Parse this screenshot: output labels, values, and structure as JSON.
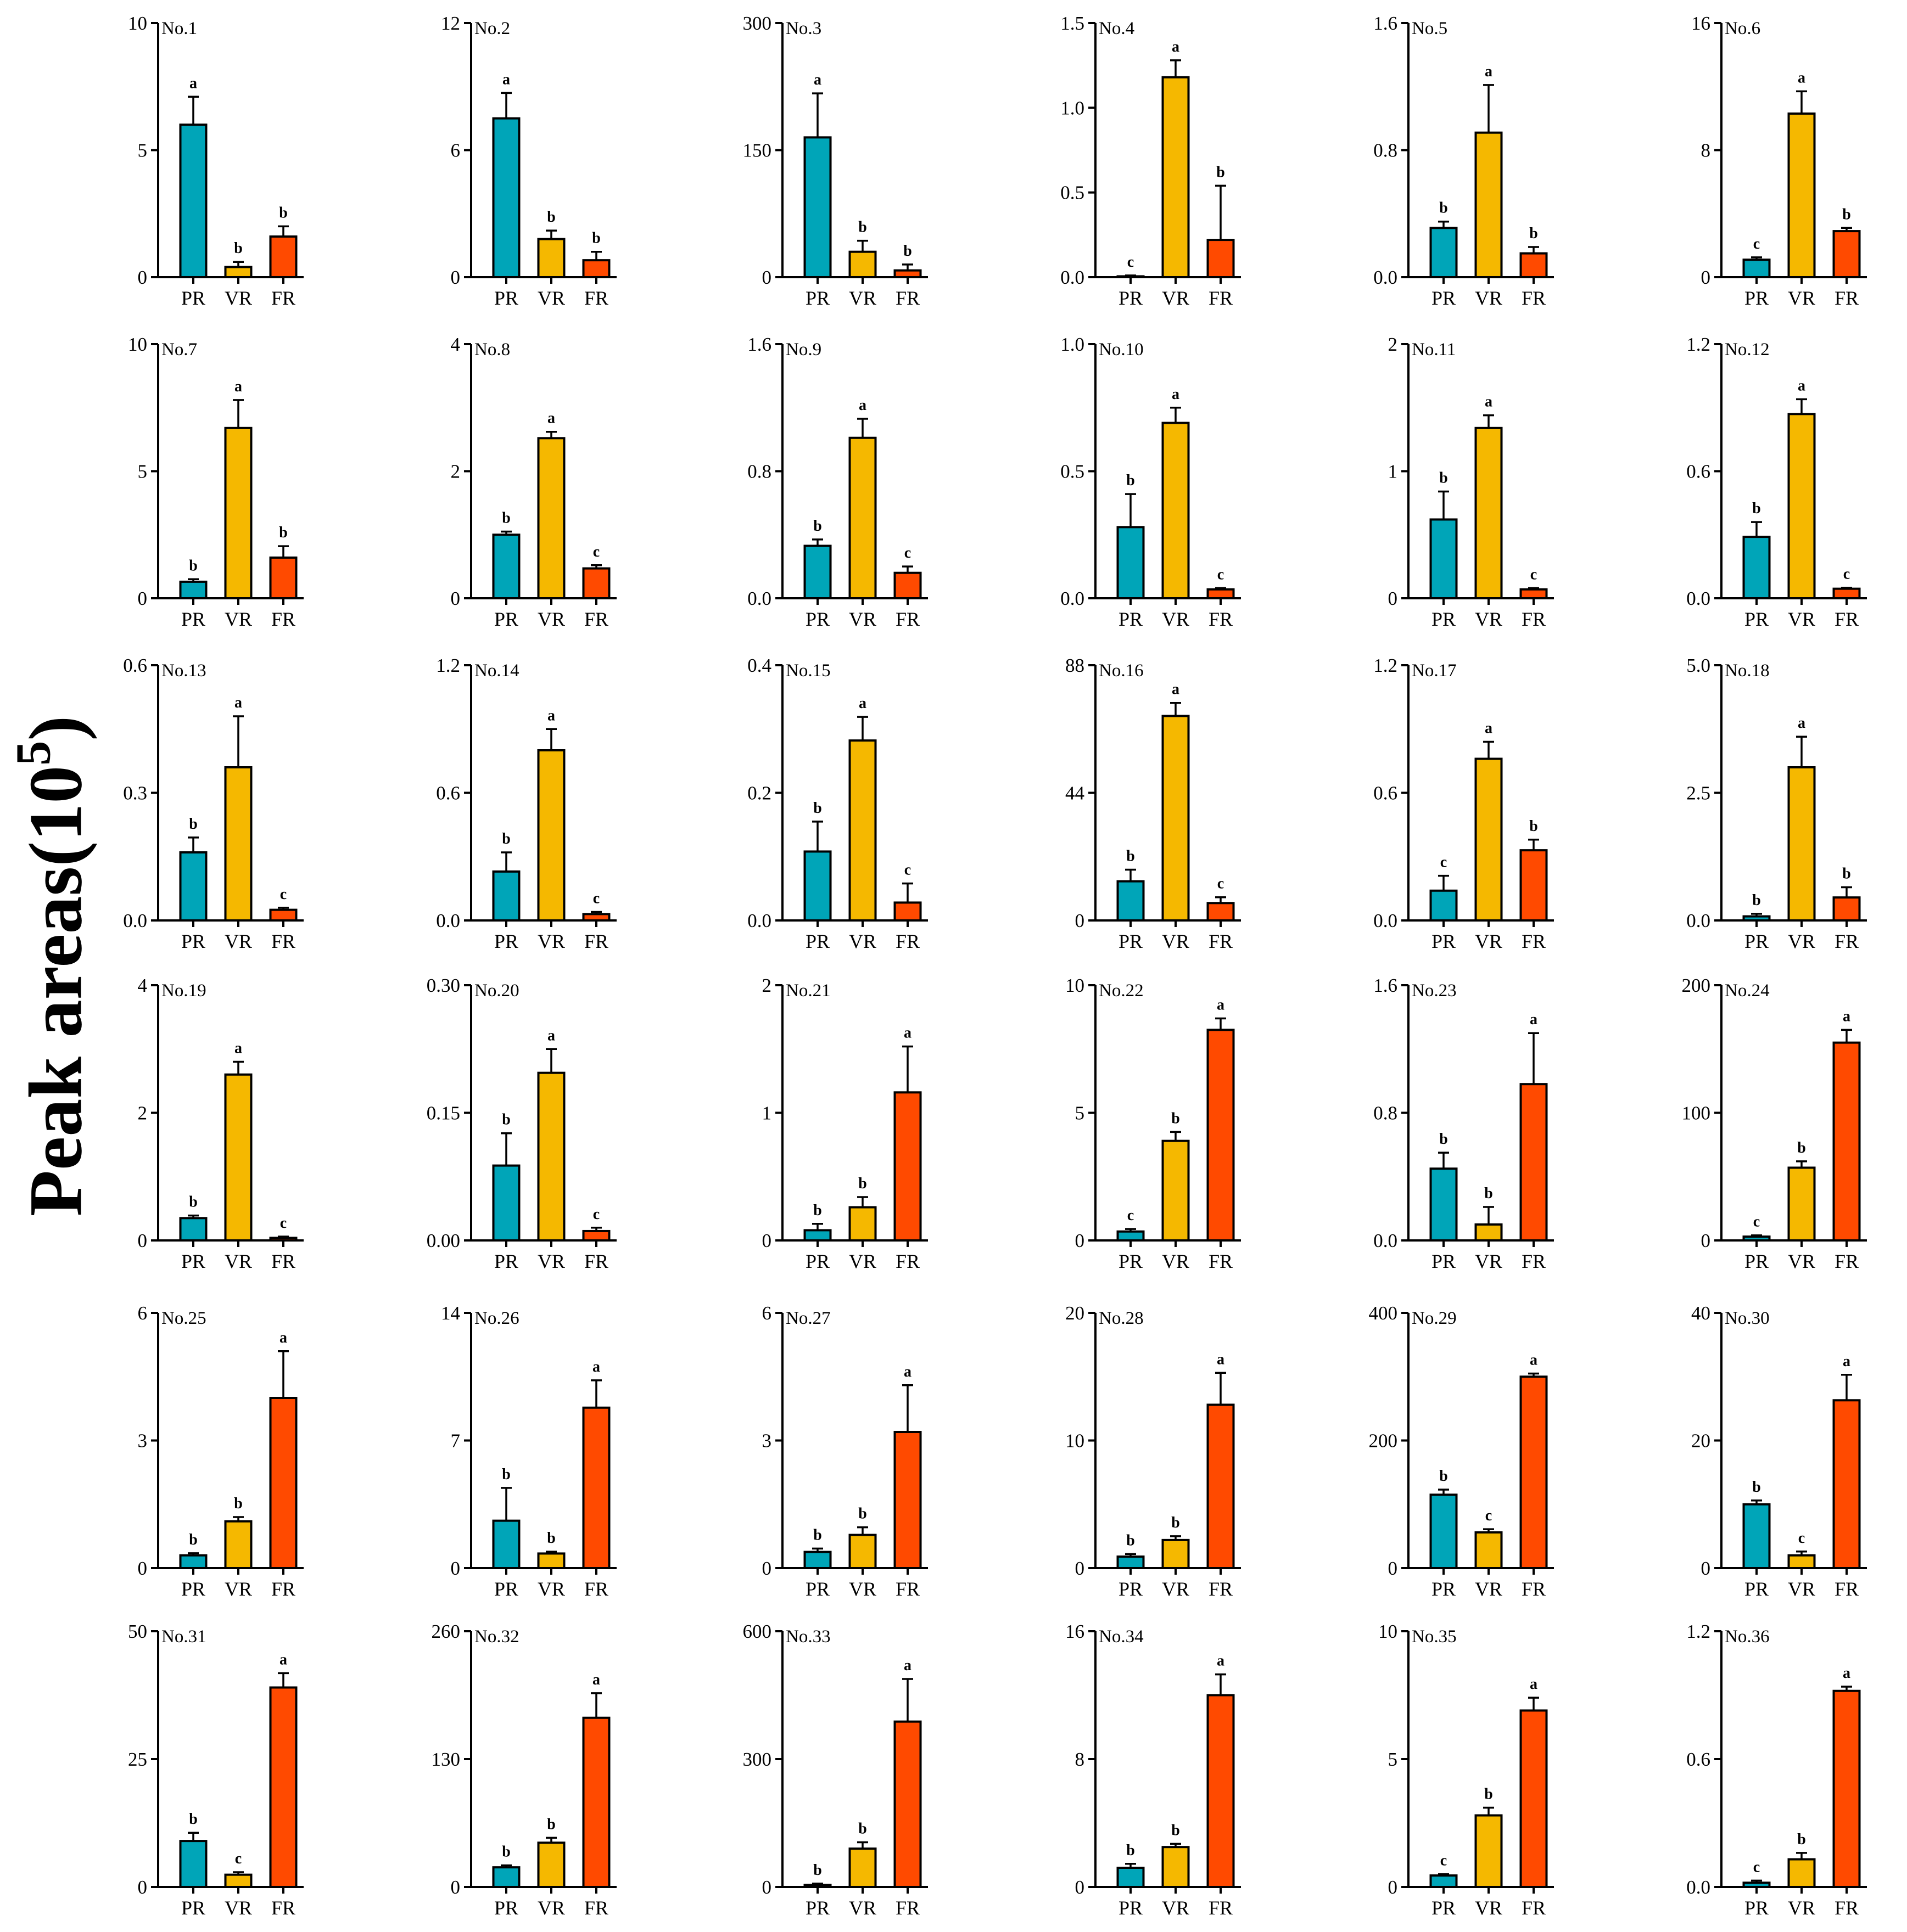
{
  "figure": {
    "y_label_main": "Peak areas(10",
    "y_label_exp": "5",
    "y_label_close": ")"
  },
  "colors": {
    "PR": "#00A5B8",
    "VR": "#F5B800",
    "FR": "#FF4A00",
    "axis": "#000000"
  },
  "chart_data": [
    {
      "type": "bar",
      "title": "No.1",
      "categories": [
        "PR",
        "VR",
        "FR"
      ],
      "values": [
        6.0,
        0.4,
        1.6
      ],
      "errors": [
        1.1,
        0.2,
        0.4
      ],
      "letters": [
        "a",
        "b",
        "b"
      ],
      "ylim": [
        0,
        10
      ],
      "ticks": [
        "0",
        "5",
        "10"
      ]
    },
    {
      "type": "bar",
      "title": "No.2",
      "categories": [
        "PR",
        "VR",
        "FR"
      ],
      "values": [
        7.5,
        1.8,
        0.8
      ],
      "errors": [
        1.2,
        0.4,
        0.4
      ],
      "letters": [
        "a",
        "b",
        "b"
      ],
      "ylim": [
        0,
        12
      ],
      "ticks": [
        "0",
        "6",
        "12"
      ]
    },
    {
      "type": "bar",
      "title": "No.3",
      "categories": [
        "PR",
        "VR",
        "FR"
      ],
      "values": [
        165,
        30,
        8
      ],
      "errors": [
        52,
        13,
        7
      ],
      "letters": [
        "a",
        "b",
        "b"
      ],
      "ylim": [
        0,
        300
      ],
      "ticks": [
        "0",
        "150",
        "300"
      ]
    },
    {
      "type": "bar",
      "title": "No.4",
      "categories": [
        "PR",
        "VR",
        "FR"
      ],
      "values": [
        0.005,
        1.18,
        0.22
      ],
      "errors": [
        0.005,
        0.1,
        0.32
      ],
      "letters": [
        "c",
        "a",
        "b"
      ],
      "ylim": [
        0,
        1.5
      ],
      "ticks": [
        "0.0",
        "0.5",
        "1.0",
        "1.5"
      ]
    },
    {
      "type": "bar",
      "title": "No.5",
      "categories": [
        "PR",
        "VR",
        "FR"
      ],
      "values": [
        0.31,
        0.91,
        0.15
      ],
      "errors": [
        0.04,
        0.3,
        0.04
      ],
      "letters": [
        "b",
        "a",
        "b"
      ],
      "ylim": [
        0,
        1.6
      ],
      "ticks": [
        "0.0",
        "0.8",
        "1.6"
      ]
    },
    {
      "type": "bar",
      "title": "No.6",
      "categories": [
        "PR",
        "VR",
        "FR"
      ],
      "values": [
        1.1,
        10.3,
        2.9
      ],
      "errors": [
        0.15,
        1.4,
        0.2
      ],
      "letters": [
        "c",
        "a",
        "b"
      ],
      "ylim": [
        0,
        16
      ],
      "ticks": [
        "0",
        "8",
        "16"
      ]
    },
    {
      "type": "bar",
      "title": "No.7",
      "categories": [
        "PR",
        "VR",
        "FR"
      ],
      "values": [
        0.65,
        6.7,
        1.6
      ],
      "errors": [
        0.1,
        1.1,
        0.45
      ],
      "letters": [
        "b",
        "a",
        "b"
      ],
      "ylim": [
        0,
        10
      ],
      "ticks": [
        "0",
        "5",
        "10"
      ]
    },
    {
      "type": "bar",
      "title": "No.8",
      "categories": [
        "PR",
        "VR",
        "FR"
      ],
      "values": [
        1.0,
        2.52,
        0.47
      ],
      "errors": [
        0.05,
        0.1,
        0.05
      ],
      "letters": [
        "b",
        "a",
        "c"
      ],
      "ylim": [
        0,
        4
      ],
      "ticks": [
        "0",
        "2",
        "4"
      ]
    },
    {
      "type": "bar",
      "title": "No.9",
      "categories": [
        "PR",
        "VR",
        "FR"
      ],
      "values": [
        0.33,
        1.01,
        0.16
      ],
      "errors": [
        0.04,
        0.12,
        0.04
      ],
      "letters": [
        "b",
        "a",
        "c"
      ],
      "ylim": [
        0,
        1.6
      ],
      "ticks": [
        "0.0",
        "0.8",
        "1.6"
      ]
    },
    {
      "type": "bar",
      "title": "No.10",
      "categories": [
        "PR",
        "VR",
        "FR"
      ],
      "values": [
        0.28,
        0.69,
        0.035
      ],
      "errors": [
        0.13,
        0.06,
        0.005
      ],
      "letters": [
        "b",
        "a",
        "c"
      ],
      "ylim": [
        0,
        1.0
      ],
      "ticks": [
        "0.0",
        "0.5",
        "1.0"
      ]
    },
    {
      "type": "bar",
      "title": "No.11",
      "categories": [
        "PR",
        "VR",
        "FR"
      ],
      "values": [
        0.62,
        1.34,
        0.07
      ],
      "errors": [
        0.22,
        0.1,
        0.01
      ],
      "letters": [
        "b",
        "a",
        "c"
      ],
      "ylim": [
        0,
        2
      ],
      "ticks": [
        "0",
        "1",
        "2"
      ]
    },
    {
      "type": "bar",
      "title": "No.12",
      "categories": [
        "PR",
        "VR",
        "FR"
      ],
      "values": [
        0.29,
        0.87,
        0.045
      ],
      "errors": [
        0.07,
        0.07,
        0.005
      ],
      "letters": [
        "b",
        "a",
        "c"
      ],
      "ylim": [
        0,
        1.2
      ],
      "ticks": [
        "0.0",
        "0.6",
        "1.2"
      ]
    },
    {
      "type": "bar",
      "title": "No.13",
      "categories": [
        "PR",
        "VR",
        "FR"
      ],
      "values": [
        0.16,
        0.36,
        0.025
      ],
      "errors": [
        0.035,
        0.12,
        0.005
      ],
      "letters": [
        "b",
        "a",
        "c"
      ],
      "ylim": [
        0,
        0.6
      ],
      "ticks": [
        "0.0",
        "0.3",
        "0.6"
      ]
    },
    {
      "type": "bar",
      "title": "No.14",
      "categories": [
        "PR",
        "VR",
        "FR"
      ],
      "values": [
        0.23,
        0.8,
        0.03
      ],
      "errors": [
        0.09,
        0.1,
        0.01
      ],
      "letters": [
        "b",
        "a",
        "c"
      ],
      "ylim": [
        0,
        1.2
      ],
      "ticks": [
        "0.0",
        "0.6",
        "1.2"
      ]
    },
    {
      "type": "bar",
      "title": "No.15",
      "categories": [
        "PR",
        "VR",
        "FR"
      ],
      "values": [
        0.108,
        0.282,
        0.028
      ],
      "errors": [
        0.047,
        0.037,
        0.03
      ],
      "letters": [
        "b",
        "a",
        "c"
      ],
      "ylim": [
        0,
        0.4
      ],
      "ticks": [
        "0.0",
        "0.2",
        "0.4"
      ]
    },
    {
      "type": "bar",
      "title": "No.16",
      "categories": [
        "PR",
        "VR",
        "FR"
      ],
      "values": [
        13.5,
        70.5,
        6.0
      ],
      "errors": [
        4,
        4.5,
        2
      ],
      "letters": [
        "b",
        "a",
        "c"
      ],
      "ylim": [
        0,
        88
      ],
      "ticks": [
        "0",
        "44",
        "88"
      ]
    },
    {
      "type": "bar",
      "title": "No.17",
      "categories": [
        "PR",
        "VR",
        "FR"
      ],
      "values": [
        0.14,
        0.76,
        0.33
      ],
      "errors": [
        0.07,
        0.08,
        0.05
      ],
      "letters": [
        "c",
        "a",
        "b"
      ],
      "ylim": [
        0,
        1.2
      ],
      "ticks": [
        "0.0",
        "0.6",
        "1.2"
      ]
    },
    {
      "type": "bar",
      "title": "No.18",
      "categories": [
        "PR",
        "VR",
        "FR"
      ],
      "values": [
        0.08,
        3.0,
        0.45
      ],
      "errors": [
        0.05,
        0.6,
        0.2
      ],
      "letters": [
        "b",
        "a",
        "b"
      ],
      "ylim": [
        0,
        5.0
      ],
      "ticks": [
        "0.0",
        "2.5",
        "5.0"
      ]
    },
    {
      "type": "bar",
      "title": "No.19",
      "categories": [
        "PR",
        "VR",
        "FR"
      ],
      "values": [
        0.35,
        2.6,
        0.04
      ],
      "errors": [
        0.04,
        0.2,
        0.02
      ],
      "letters": [
        "b",
        "a",
        "c"
      ],
      "ylim": [
        0,
        4
      ],
      "ticks": [
        "0",
        "2",
        "4"
      ]
    },
    {
      "type": "bar",
      "title": "No.20",
      "categories": [
        "PR",
        "VR",
        "FR"
      ],
      "values": [
        0.088,
        0.197,
        0.011
      ],
      "errors": [
        0.038,
        0.028,
        0.004
      ],
      "letters": [
        "b",
        "a",
        "c"
      ],
      "ylim": [
        0,
        0.3
      ],
      "ticks": [
        "0.00",
        "0.15",
        "0.30"
      ]
    },
    {
      "type": "bar",
      "title": "No.21",
      "categories": [
        "PR",
        "VR",
        "FR"
      ],
      "values": [
        0.08,
        0.26,
        1.16
      ],
      "errors": [
        0.05,
        0.08,
        0.36
      ],
      "letters": [
        "b",
        "b",
        "a"
      ],
      "ylim": [
        0,
        2
      ],
      "ticks": [
        "0",
        "1",
        "2"
      ]
    },
    {
      "type": "bar",
      "title": "No.22",
      "categories": [
        "PR",
        "VR",
        "FR"
      ],
      "values": [
        0.35,
        3.9,
        8.25
      ],
      "errors": [
        0.1,
        0.35,
        0.45
      ],
      "letters": [
        "c",
        "b",
        "a"
      ],
      "ylim": [
        0,
        10
      ],
      "ticks": [
        "0",
        "5",
        "10"
      ]
    },
    {
      "type": "bar",
      "title": "No.23",
      "categories": [
        "PR",
        "VR",
        "FR"
      ],
      "values": [
        0.45,
        0.1,
        0.98
      ],
      "errors": [
        0.1,
        0.11,
        0.32
      ],
      "letters": [
        "b",
        "b",
        "a"
      ],
      "ylim": [
        0,
        1.6
      ],
      "ticks": [
        "0.0",
        "0.8",
        "1.6"
      ]
    },
    {
      "type": "bar",
      "title": "No.24",
      "categories": [
        "PR",
        "VR",
        "FR"
      ],
      "values": [
        3,
        57,
        155
      ],
      "errors": [
        1,
        5,
        10
      ],
      "letters": [
        "c",
        "b",
        "a"
      ],
      "ylim": [
        0,
        200
      ],
      "ticks": [
        "0",
        "100",
        "200"
      ]
    },
    {
      "type": "bar",
      "title": "No.25",
      "categories": [
        "PR",
        "VR",
        "FR"
      ],
      "values": [
        0.3,
        1.1,
        4.0
      ],
      "errors": [
        0.05,
        0.1,
        1.1
      ],
      "letters": [
        "b",
        "b",
        "a"
      ],
      "ylim": [
        0,
        6
      ],
      "ticks": [
        "0",
        "3",
        "6"
      ]
    },
    {
      "type": "bar",
      "title": "No.26",
      "categories": [
        "PR",
        "VR",
        "FR"
      ],
      "values": [
        2.6,
        0.8,
        8.8
      ],
      "errors": [
        1.8,
        0.1,
        1.5
      ],
      "letters": [
        "b",
        "b",
        "a"
      ],
      "ylim": [
        0,
        14
      ],
      "ticks": [
        "0",
        "7",
        "14"
      ]
    },
    {
      "type": "bar",
      "title": "No.27",
      "categories": [
        "PR",
        "VR",
        "FR"
      ],
      "values": [
        0.38,
        0.78,
        3.2
      ],
      "errors": [
        0.08,
        0.18,
        1.1
      ],
      "letters": [
        "b",
        "b",
        "a"
      ],
      "ylim": [
        0,
        6
      ],
      "ticks": [
        "0",
        "3",
        "6"
      ]
    },
    {
      "type": "bar",
      "title": "No.28",
      "categories": [
        "PR",
        "VR",
        "FR"
      ],
      "values": [
        0.9,
        2.2,
        12.8
      ],
      "errors": [
        0.2,
        0.3,
        2.5
      ],
      "letters": [
        "b",
        "b",
        "a"
      ],
      "ylim": [
        0,
        20
      ],
      "ticks": [
        "0",
        "10",
        "20"
      ]
    },
    {
      "type": "bar",
      "title": "No.29",
      "categories": [
        "PR",
        "VR",
        "FR"
      ],
      "values": [
        115,
        56,
        300
      ],
      "errors": [
        8,
        5,
        5
      ],
      "letters": [
        "b",
        "c",
        "a"
      ],
      "ylim": [
        0,
        400
      ],
      "ticks": [
        "0",
        "200",
        "400"
      ]
    },
    {
      "type": "bar",
      "title": "No.30",
      "categories": [
        "PR",
        "VR",
        "FR"
      ],
      "values": [
        10,
        2,
        26.3
      ],
      "errors": [
        0.6,
        0.6,
        4
      ],
      "letters": [
        "b",
        "c",
        "a"
      ],
      "ylim": [
        0,
        40
      ],
      "ticks": [
        "0",
        "20",
        "40"
      ]
    },
    {
      "type": "bar",
      "title": "No.31",
      "categories": [
        "PR",
        "VR",
        "FR"
      ],
      "values": [
        9,
        2.4,
        39
      ],
      "errors": [
        1.6,
        0.5,
        2.8
      ],
      "letters": [
        "b",
        "c",
        "a"
      ],
      "ylim": [
        0,
        50
      ],
      "ticks": [
        "0",
        "25",
        "50"
      ]
    },
    {
      "type": "bar",
      "title": "No.32",
      "categories": [
        "PR",
        "VR",
        "FR"
      ],
      "values": [
        20,
        45,
        172
      ],
      "errors": [
        2,
        5,
        25
      ],
      "letters": [
        "b",
        "b",
        "a"
      ],
      "ylim": [
        0,
        260
      ],
      "ticks": [
        "0",
        "130",
        "260"
      ]
    },
    {
      "type": "bar",
      "title": "No.33",
      "categories": [
        "PR",
        "VR",
        "FR"
      ],
      "values": [
        5,
        90,
        388
      ],
      "errors": [
        3,
        15,
        100
      ],
      "letters": [
        "b",
        "b",
        "a"
      ],
      "ylim": [
        0,
        600
      ],
      "ticks": [
        "0",
        "300",
        "600"
      ]
    },
    {
      "type": "bar",
      "title": "No.34",
      "categories": [
        "PR",
        "VR",
        "FR"
      ],
      "values": [
        1.2,
        2.5,
        12
      ],
      "errors": [
        0.25,
        0.2,
        1.3
      ],
      "letters": [
        "b",
        "b",
        "a"
      ],
      "ylim": [
        0,
        16
      ],
      "ticks": [
        "0",
        "8",
        "16"
      ]
    },
    {
      "type": "bar",
      "title": "No.35",
      "categories": [
        "PR",
        "VR",
        "FR"
      ],
      "values": [
        0.45,
        2.8,
        6.9
      ],
      "errors": [
        0.05,
        0.3,
        0.5
      ],
      "letters": [
        "c",
        "b",
        "a"
      ],
      "ylim": [
        0,
        10
      ],
      "ticks": [
        "0",
        "5",
        "10"
      ]
    },
    {
      "type": "bar",
      "title": "No.36",
      "categories": [
        "PR",
        "VR",
        "FR"
      ],
      "values": [
        0.02,
        0.13,
        0.92
      ],
      "errors": [
        0.01,
        0.03,
        0.02
      ],
      "letters": [
        "c",
        "b",
        "a"
      ],
      "ylim": [
        0,
        1.2
      ],
      "ticks": [
        "0.0",
        "0.6",
        "1.2"
      ]
    }
  ]
}
